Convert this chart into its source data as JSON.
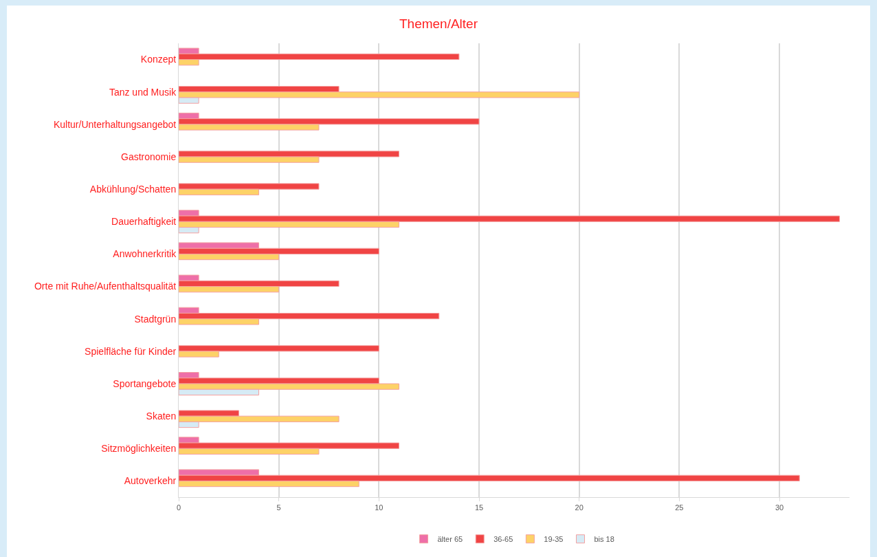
{
  "chart_data": {
    "type": "bar",
    "orientation": "horizontal",
    "title": "Themen/Alter",
    "categories": [
      "Konzept",
      "Tanz und Musik",
      "Kultur/Unterhaltungsangebot",
      "Gastronomie",
      "Abkühlung/Schatten",
      "Dauerhaftigkeit",
      "Anwohnerkritik",
      "Orte mit Ruhe/Aufenthaltsqualität",
      "Stadtgrün",
      "Spielfläche für Kinder",
      "Sportangebote",
      "Skaten",
      "Sitzmöglichkeiten",
      "Autoverkehr"
    ],
    "series": [
      {
        "name": "älter 65",
        "color": "#ee6fa8",
        "values": [
          1,
          null,
          1,
          null,
          null,
          1,
          4,
          1,
          1,
          null,
          1,
          null,
          1,
          4
        ]
      },
      {
        "name": "36-65",
        "color": "#f04444",
        "values": [
          14,
          8,
          15,
          11,
          7,
          33,
          10,
          8,
          13,
          10,
          10,
          3,
          11,
          31
        ]
      },
      {
        "name": "19-35",
        "color": "#fdd267",
        "values": [
          1,
          20,
          7,
          7,
          4,
          11,
          5,
          5,
          4,
          2,
          11,
          8,
          7,
          9
        ]
      },
      {
        "name": "bis 18",
        "color": "#d6ebf5",
        "values": [
          null,
          1,
          null,
          null,
          null,
          1,
          null,
          null,
          null,
          null,
          4,
          1,
          null,
          null
        ]
      }
    ],
    "xlim": [
      0,
      33.5
    ],
    "xticks": [
      0,
      5,
      10,
      15,
      20,
      25,
      30
    ],
    "grid": "x",
    "legend": "bottom"
  }
}
